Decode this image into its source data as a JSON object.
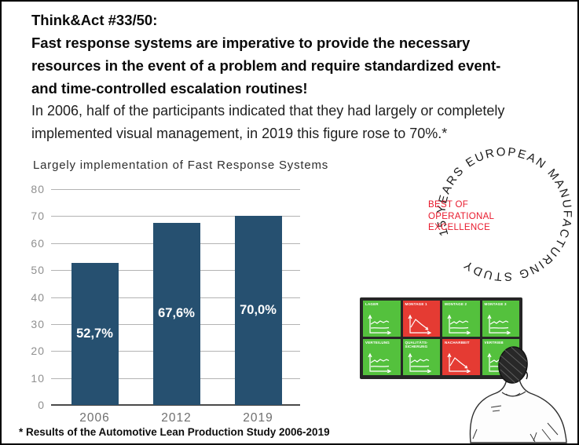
{
  "slide": {
    "title": "Think&Act #33/50:",
    "headline_lines": [
      "Fast response systems are imperative to provide the necessary",
      "resources in the event of a problem and require standardized event-",
      "and time-controlled escalation routines!"
    ],
    "subtext_lines": [
      "In 2006, half of the participants indicated that they had largely or completely",
      "implemented visual management, in 2019 this figure rose to 70%.*"
    ],
    "footnote": "* Results of the Automotive Lean Production Study 2006-2019"
  },
  "chart_data": {
    "type": "bar",
    "title": "Largely implementation of Fast Response Systems",
    "categories": [
      "2006",
      "2012",
      "2019"
    ],
    "values": [
      52.7,
      67.6,
      70.0
    ],
    "value_labels": [
      "52,7%",
      "67,6%",
      "70,0%"
    ],
    "xlabel": "",
    "ylabel": "",
    "ylim": [
      0,
      80
    ],
    "yticks": [
      0,
      10,
      20,
      30,
      40,
      50,
      60,
      70,
      80
    ],
    "grid": true,
    "legend": "none",
    "bar_color": "#265070",
    "value_label_color": "#ffffff"
  },
  "badge": {
    "ring_text": "15 YEARS EUROPEAN MANUFACTURING STUDY",
    "ring_color": "#1b1b1b",
    "center_lines": [
      "BEST OF",
      "OPERATIONAL",
      "EXCELLENCE"
    ],
    "center_color": "#e8192c"
  },
  "dashboard": {
    "tiles": [
      {
        "label": "LAGER",
        "status": "green",
        "trend": "flat"
      },
      {
        "label": "MONTAGE 1",
        "status": "red",
        "trend": "down"
      },
      {
        "label": "MONTAGE 2",
        "status": "green",
        "trend": "flat"
      },
      {
        "label": "MONTAGE 3",
        "status": "green",
        "trend": "flat"
      },
      {
        "label": "VERTEILUNG",
        "status": "green",
        "trend": "flat"
      },
      {
        "label": "QUALITÄTS-SICHERUNG",
        "status": "green",
        "trend": "flat"
      },
      {
        "label": "NACHARBEIT",
        "status": "red",
        "trend": "down"
      },
      {
        "label": "VERTRIEB",
        "status": "green",
        "trend": "flat"
      }
    ],
    "colors": {
      "green": "#54c13d",
      "red": "#e53b33",
      "frame": "#262626"
    }
  }
}
